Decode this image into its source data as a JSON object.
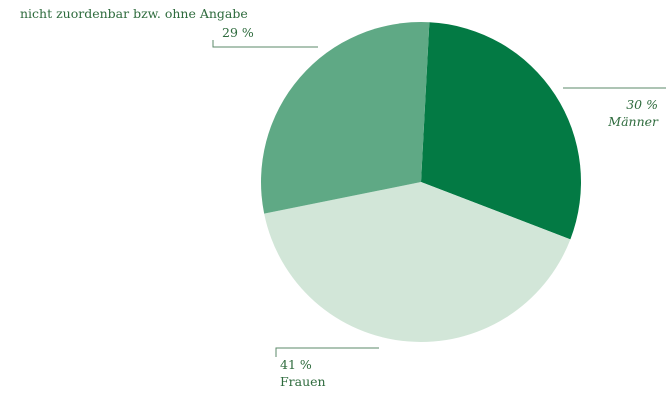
{
  "chart_data": {
    "type": "pie",
    "slices": [
      {
        "label": "Männer",
        "value": 30,
        "value_label": "30 %",
        "color": "#037a44"
      },
      {
        "label": "Frauen",
        "value": 41,
        "value_label": "41 %",
        "color": "#d2e6d8"
      },
      {
        "label": "nicht zuordenbar bzw. ohne Angabe",
        "value": 29,
        "value_label": "29 %",
        "color": "#5fa985"
      }
    ],
    "label_color": "#2e6b3d"
  }
}
